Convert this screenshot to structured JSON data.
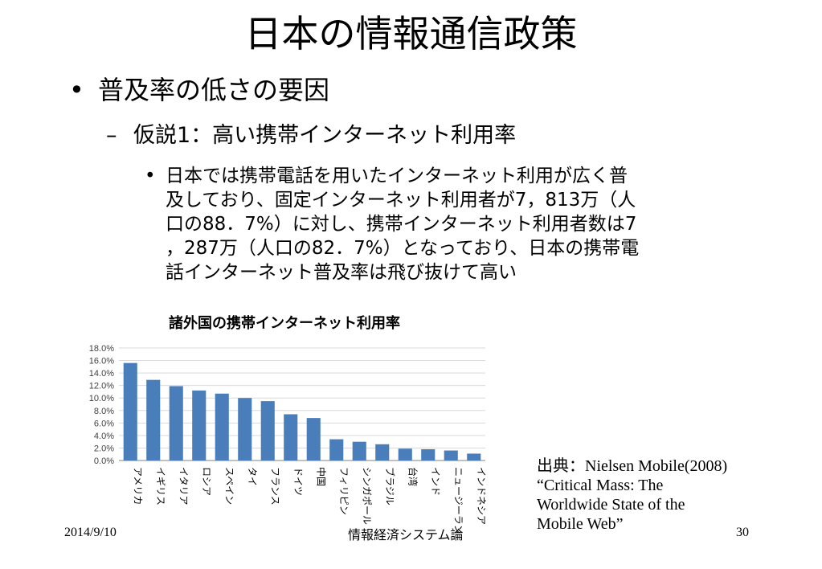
{
  "slide": {
    "title": "日本の情報通信政策",
    "bullet1": "普及率の低さの要因",
    "bullet2": "仮説1：高い携帯インターネット利用率",
    "bullet3_lines": [
      "日本では携帯電話を用いたインターネット利用が広く普",
      "及しており、固定インターネット利用者が7，813万（人",
      "口の88．7%）に対し、携帯インターネット利用者数は7",
      "，287万（人口の82．7%）となっており、日本の携帯電",
      "話インターネット普及率は飛び抜けて高い"
    ],
    "source": {
      "label": "出典：",
      "lines": [
        "Nielsen Mobile(2008)",
        "“Critical Mass: The",
        "Worldwide State of the",
        "Mobile Web”"
      ]
    },
    "footer": {
      "date": "2014/9/10",
      "course": "情報経済システム論",
      "page": "30"
    }
  },
  "colors": {
    "bar": "#4a7ebb",
    "grid": "#d9d9d9",
    "axis": "#808080"
  },
  "chart_data": {
    "type": "bar",
    "title": "諸外国の携帯インターネット利用率",
    "categories": [
      "アメリカ",
      "イギリス",
      "イタリア",
      "ロシア",
      "スペイン",
      "タイ",
      "フランス",
      "ドイツ",
      "中国",
      "フィリピン",
      "シンガポール",
      "ブラジル",
      "台湾",
      "インド",
      "ニュージーランド",
      "インドネシア"
    ],
    "values": [
      15.6,
      12.9,
      11.9,
      11.2,
      10.7,
      10.0,
      9.5,
      7.4,
      6.8,
      3.4,
      3.0,
      2.6,
      1.9,
      1.8,
      1.6,
      1.1
    ],
    "ylim": [
      0,
      18
    ],
    "yticks": [
      "0.0%",
      "2.0%",
      "4.0%",
      "6.0%",
      "8.0%",
      "10.0%",
      "12.0%",
      "14.0%",
      "16.0%",
      "18.0%"
    ],
    "ytick_values": [
      0,
      2,
      4,
      6,
      8,
      10,
      12,
      14,
      16,
      18
    ],
    "grid": true,
    "legend": "none"
  }
}
